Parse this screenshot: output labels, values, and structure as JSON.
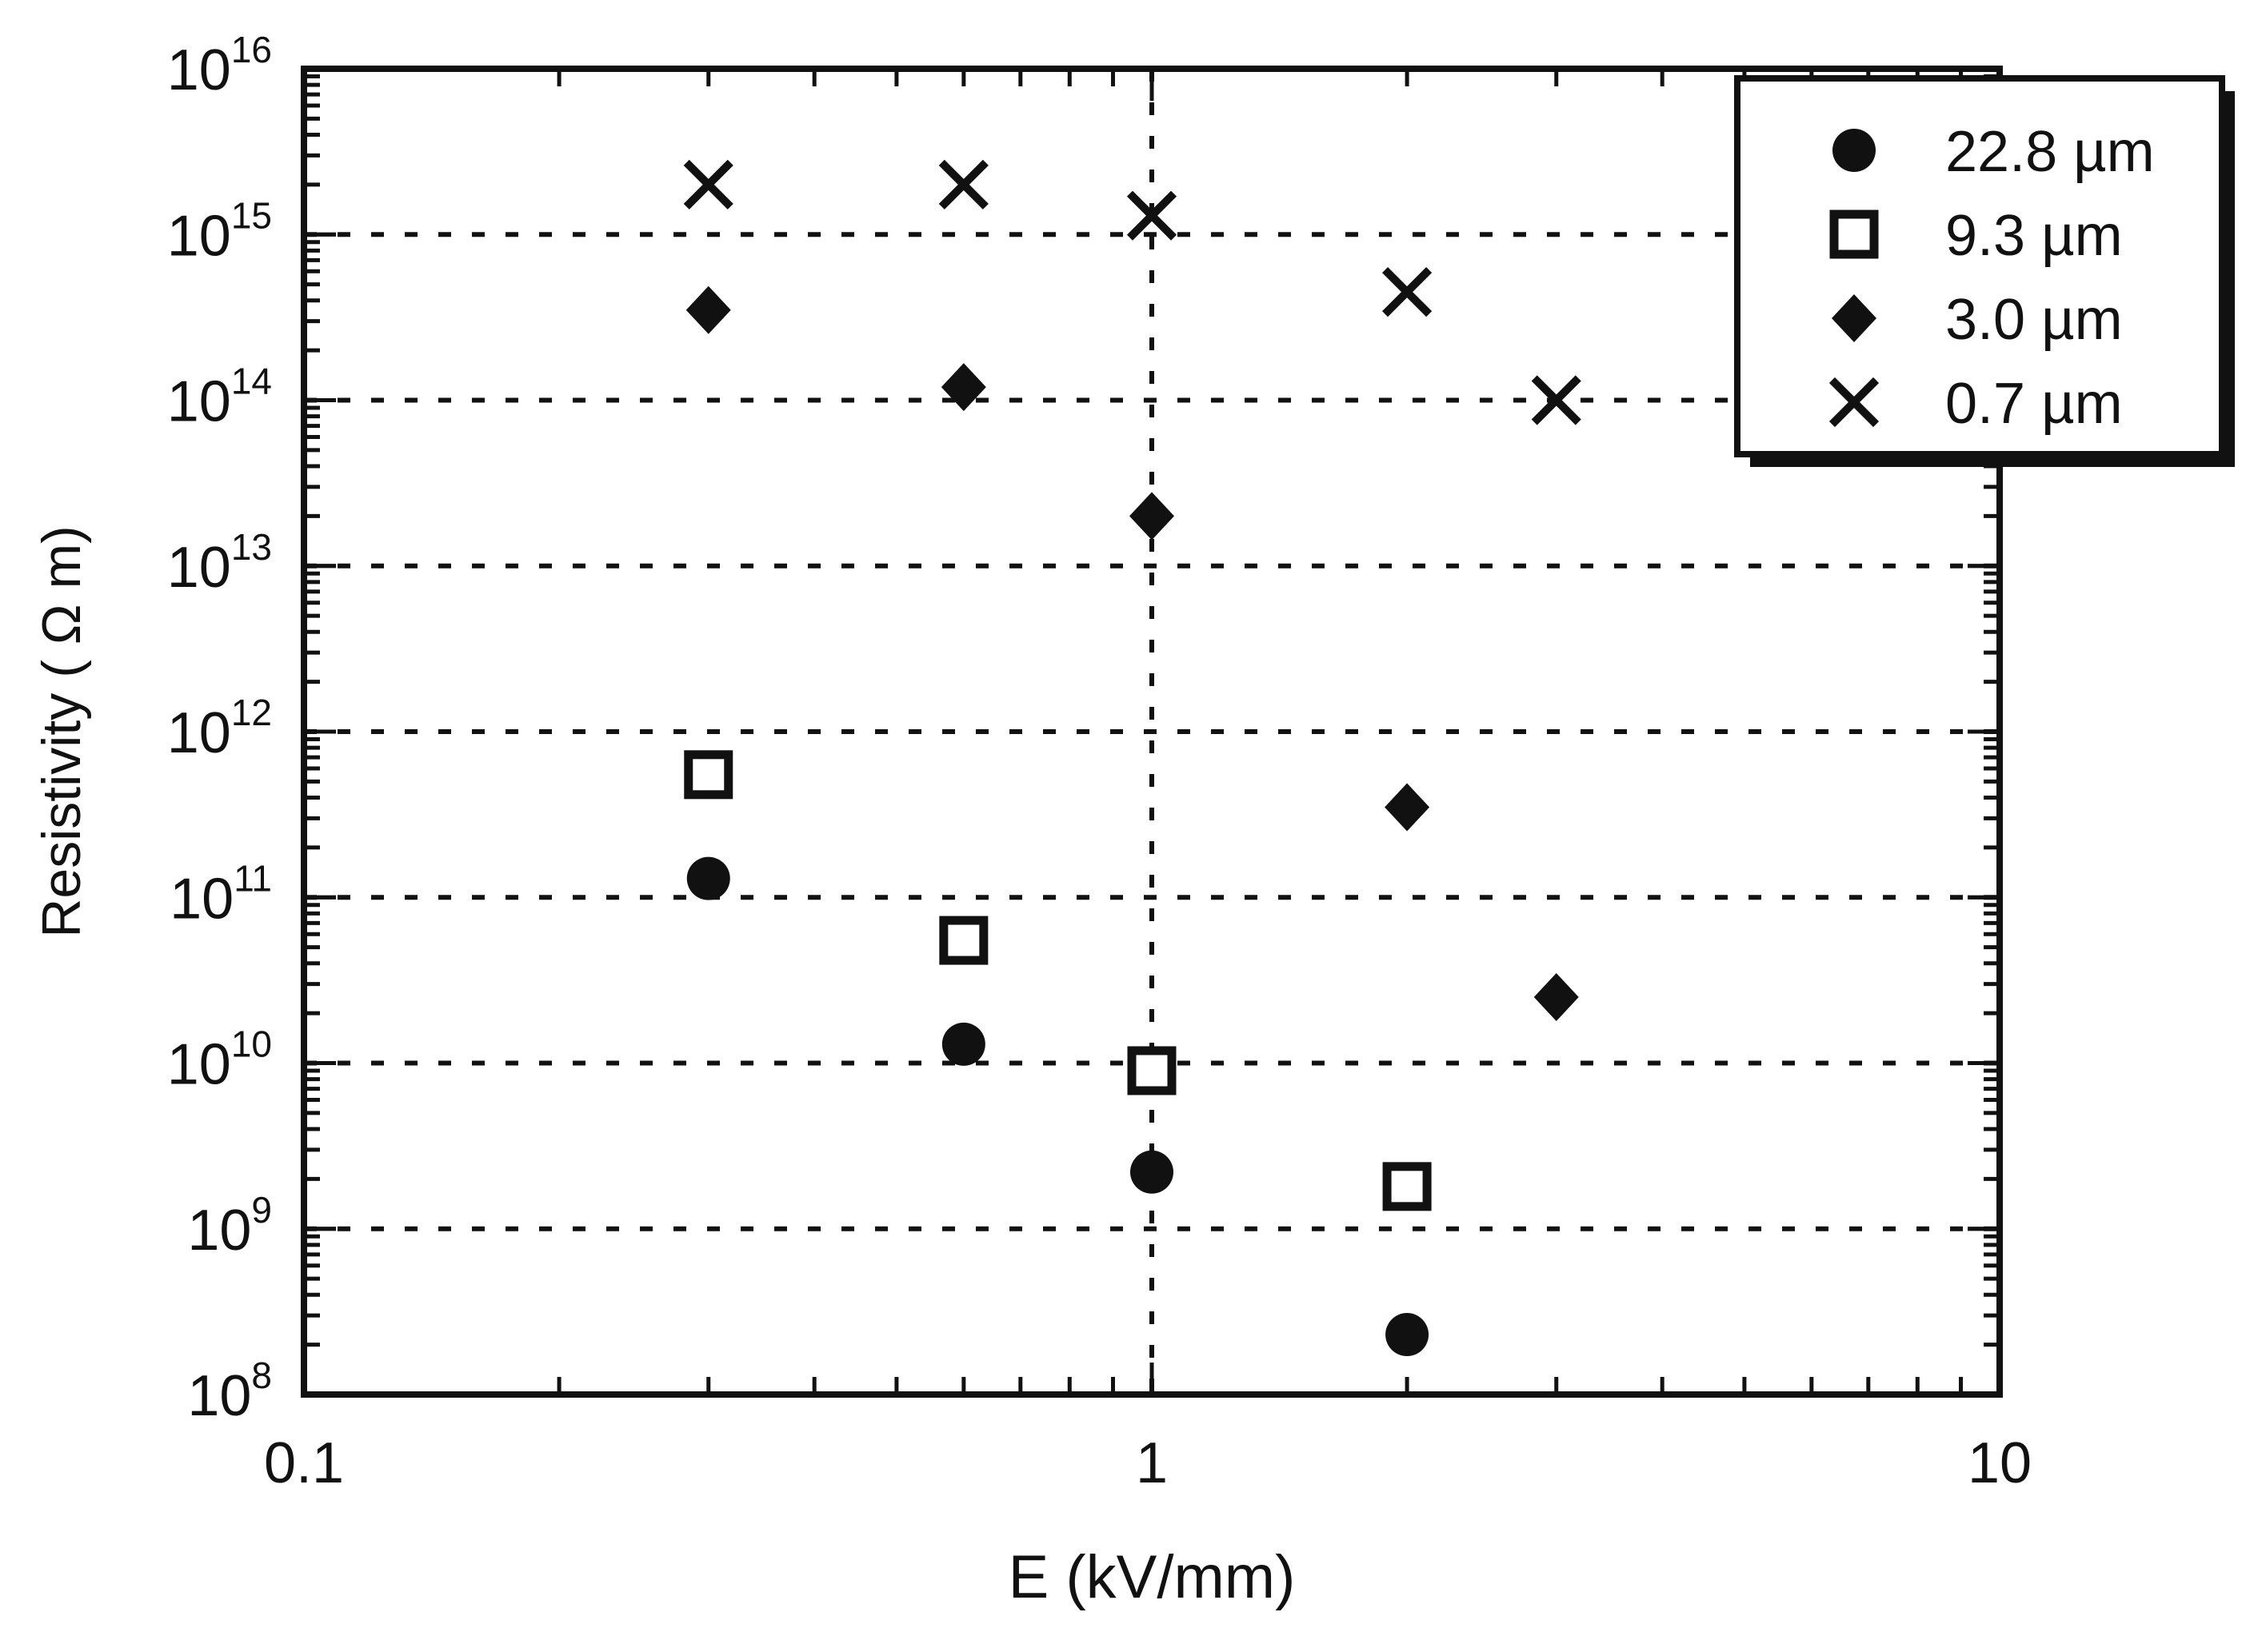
{
  "chart_data": {
    "type": "scatter",
    "title": "",
    "xlabel": "E (kV/mm)",
    "ylabel": "Resistivity ( Ω m)",
    "xscale": "log",
    "yscale": "log",
    "xlim": [
      0.1,
      10
    ],
    "ylim": [
      100000000.0,
      1e+16
    ],
    "grid": "dotted, major decades only",
    "legend_position": "top-right",
    "x_ticks": [
      {
        "value": 0.1,
        "label": "0.1"
      },
      {
        "value": 1,
        "label": "1"
      },
      {
        "value": 10,
        "label": "10"
      }
    ],
    "y_ticks": [
      {
        "value": 100000000.0,
        "base": "10",
        "exp": "8"
      },
      {
        "value": 1000000000.0,
        "base": "10",
        "exp": "9"
      },
      {
        "value": 10000000000.0,
        "base": "10",
        "exp": "10"
      },
      {
        "value": 100000000000.0,
        "base": "10",
        "exp": "11"
      },
      {
        "value": 1000000000000.0,
        "base": "10",
        "exp": "12"
      },
      {
        "value": 10000000000000.0,
        "base": "10",
        "exp": "13"
      },
      {
        "value": 100000000000000.0,
        "base": "10",
        "exp": "14"
      },
      {
        "value": 1000000000000000.0,
        "base": "10",
        "exp": "15"
      },
      {
        "value": 1e+16,
        "base": "10",
        "exp": "16"
      }
    ],
    "series": [
      {
        "name": "22.8 µm",
        "marker": "circle",
        "points": [
          {
            "x": 0.3,
            "y": 130000000000.0
          },
          {
            "x": 0.6,
            "y": 13000000000.0
          },
          {
            "x": 1.0,
            "y": 2200000000.0
          },
          {
            "x": 2.0,
            "y": 230000000.0
          }
        ]
      },
      {
        "name": "9.3 µm",
        "marker": "open-square",
        "points": [
          {
            "x": 0.3,
            "y": 550000000000.0
          },
          {
            "x": 0.6,
            "y": 55000000000.0
          },
          {
            "x": 1.0,
            "y": 9000000000.0
          },
          {
            "x": 2.0,
            "y": 1800000000.0
          }
        ]
      },
      {
        "name": "3.0 µm",
        "marker": "diamond",
        "points": [
          {
            "x": 0.3,
            "y": 350000000000000.0
          },
          {
            "x": 0.6,
            "y": 120000000000000.0
          },
          {
            "x": 1.0,
            "y": 20000000000000.0
          },
          {
            "x": 2.0,
            "y": 350000000000.0
          },
          {
            "x": 3.0,
            "y": 25000000000.0
          }
        ]
      },
      {
        "name": "0.7 µm",
        "marker": "x",
        "points": [
          {
            "x": 0.3,
            "y": 2000000000000000.0
          },
          {
            "x": 0.6,
            "y": 2000000000000000.0
          },
          {
            "x": 1.0,
            "y": 1300000000000000.0
          },
          {
            "x": 2.0,
            "y": 450000000000000.0
          },
          {
            "x": 3.0,
            "y": 100000000000000.0
          }
        ]
      }
    ]
  }
}
